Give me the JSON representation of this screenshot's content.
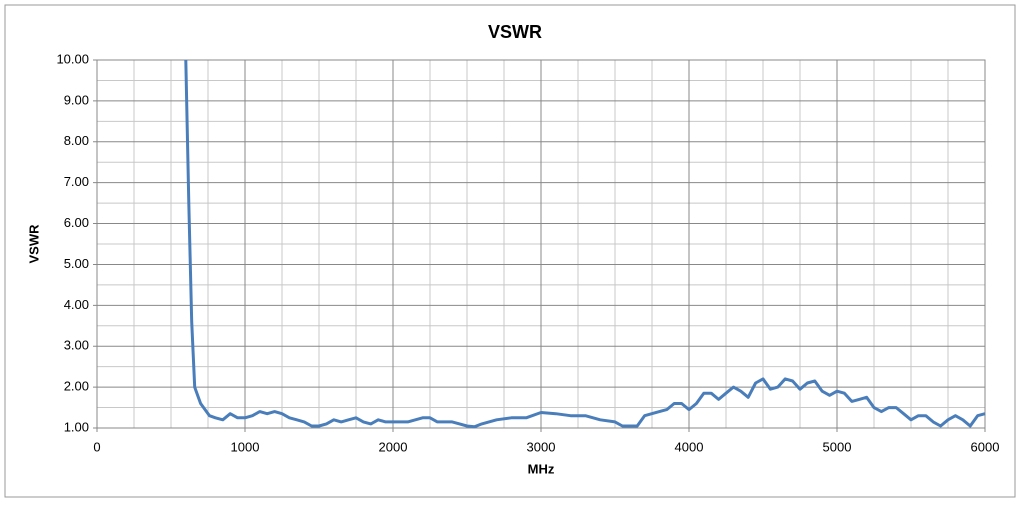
{
  "chart_data": {
    "type": "line",
    "title": "VSWR",
    "x_label": "MHz",
    "y_label": "VSWR",
    "xlim": [
      0,
      6000
    ],
    "ylim": [
      1,
      10
    ],
    "xticks": [
      0,
      1000,
      2000,
      3000,
      4000,
      5000,
      6000
    ],
    "yticks": [
      {
        "value": 1,
        "label": "1.00"
      },
      {
        "value": 2,
        "label": "2.00"
      },
      {
        "value": 3,
        "label": "3.00"
      },
      {
        "value": 4,
        "label": "4.00"
      },
      {
        "value": 5,
        "label": "5.00"
      },
      {
        "value": 6,
        "label": "6.00"
      },
      {
        "value": 7,
        "label": "7.00"
      },
      {
        "value": 8,
        "label": "8.00"
      },
      {
        "value": 9,
        "label": "9.00"
      },
      {
        "value": 10,
        "label": "10.00"
      }
    ],
    "x_minor_grid": [
      250,
      500,
      750,
      1250,
      1500,
      1750,
      2250,
      2500,
      2750,
      3250,
      3500,
      3750,
      4250,
      4500,
      4750,
      5250,
      5500,
      5750
    ],
    "y_minor_grid": [
      1.5,
      2.5,
      3.5,
      4.5,
      5.5,
      6.5,
      7.5,
      8.5,
      9.5
    ],
    "grid": true,
    "x": [
      600,
      620,
      640,
      660,
      680,
      700,
      720,
      740,
      760,
      800,
      850,
      900,
      950,
      1000,
      1050,
      1100,
      1150,
      1200,
      1250,
      1300,
      1350,
      1400,
      1450,
      1500,
      1550,
      1600,
      1650,
      1700,
      1750,
      1800,
      1850,
      1900,
      1950,
      2000,
      2100,
      2200,
      2250,
      2300,
      2400,
      2450,
      2500,
      2550,
      2600,
      2700,
      2800,
      2900,
      3000,
      3100,
      3200,
      3300,
      3400,
      3500,
      3550,
      3650,
      3700,
      3800,
      3850,
      3900,
      3950,
      4000,
      4050,
      4100,
      4150,
      4200,
      4250,
      4300,
      4350,
      4400,
      4450,
      4500,
      4550,
      4600,
      4650,
      4700,
      4750,
      4800,
      4850,
      4900,
      4950,
      5000,
      5050,
      5100,
      5150,
      5200,
      5250,
      5300,
      5350,
      5400,
      5450,
      5500,
      5550,
      5600,
      5650,
      5700,
      5750,
      5800,
      5850,
      5900,
      5950,
      6000
    ],
    "series": [
      {
        "color": "#4a7ebb",
        "values": [
          10.0,
          6.5,
          3.6,
          2.0,
          1.8,
          1.6,
          1.5,
          1.4,
          1.3,
          1.25,
          1.2,
          1.35,
          1.25,
          1.25,
          1.3,
          1.4,
          1.35,
          1.4,
          1.35,
          1.25,
          1.2,
          1.15,
          1.05,
          1.05,
          1.1,
          1.2,
          1.15,
          1.2,
          1.25,
          1.15,
          1.1,
          1.2,
          1.15,
          1.15,
          1.15,
          1.25,
          1.25,
          1.15,
          1.15,
          1.1,
          1.05,
          1.03,
          1.1,
          1.2,
          1.25,
          1.25,
          1.38,
          1.35,
          1.3,
          1.3,
          1.2,
          1.15,
          1.05,
          1.05,
          1.3,
          1.4,
          1.45,
          1.6,
          1.6,
          1.45,
          1.6,
          1.85,
          1.85,
          1.7,
          1.85,
          2.0,
          1.9,
          1.75,
          2.1,
          2.2,
          1.95,
          2.0,
          2.2,
          2.15,
          1.95,
          2.1,
          2.15,
          1.9,
          1.8,
          1.9,
          1.85,
          1.65,
          1.7,
          1.75,
          1.5,
          1.4,
          1.5,
          1.5,
          1.35,
          1.2,
          1.3,
          1.3,
          1.15,
          1.05,
          1.2,
          1.3,
          1.2,
          1.05,
          1.3,
          1.35
        ]
      }
    ]
  }
}
